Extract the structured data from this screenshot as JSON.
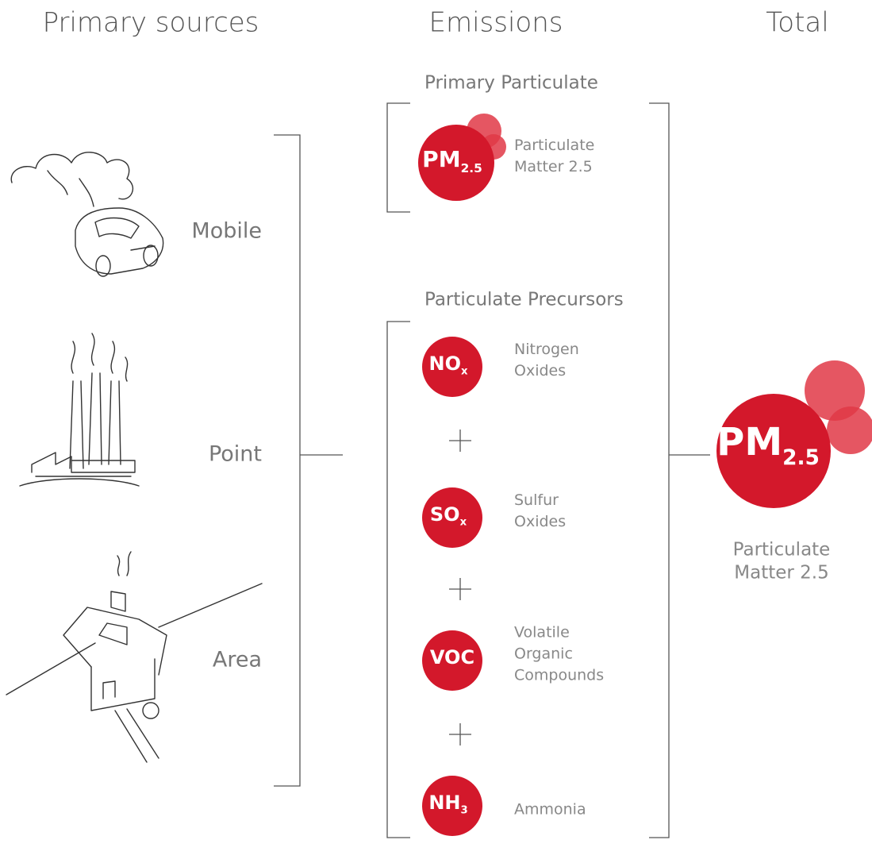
{
  "headers": {
    "sources": "Primary sources",
    "emissions": "Emissions",
    "total": "Total"
  },
  "sources": [
    "Mobile",
    "Point",
    "Area"
  ],
  "groups": [
    {
      "title": "Primary Particulate",
      "items": [
        {
          "symbol": "PM",
          "subscript": "2.5",
          "label": [
            "Particulate",
            "Matter 2.5"
          ]
        }
      ]
    },
    {
      "title": "Particulate Precursors",
      "items": [
        {
          "symbol": "NO",
          "subscript": "x",
          "label": [
            "Nitrogen",
            "Oxides"
          ]
        },
        {
          "symbol": "SO",
          "subscript": "x",
          "label": [
            "Sulfur",
            "Oxides"
          ]
        },
        {
          "symbol": "VOC",
          "label": [
            "Volatile",
            "Organic",
            "Compounds"
          ]
        },
        {
          "symbol": "NH",
          "subscript": "3",
          "label": [
            "Ammonia"
          ]
        }
      ]
    }
  ],
  "total": {
    "symbol": "PM",
    "subscript": "2.5",
    "label": [
      "Particulate",
      "Matter 2.5"
    ]
  }
}
